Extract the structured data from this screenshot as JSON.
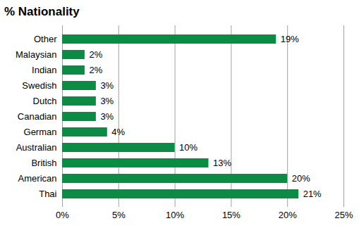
{
  "chart_data": {
    "type": "bar",
    "title": "% Nationality",
    "orientation": "horizontal",
    "categories": [
      "Other",
      "Malaysian",
      "Indian",
      "Swedish",
      "Dutch",
      "Canadian",
      "German",
      "Australian",
      "British",
      "American",
      "Thai"
    ],
    "values": [
      19,
      2,
      2,
      3,
      3,
      3,
      4,
      10,
      13,
      20,
      21
    ],
    "value_labels": [
      "19%",
      "2%",
      "2%",
      "3%",
      "3%",
      "3%",
      "4%",
      "10%",
      "13%",
      "20%",
      "21%"
    ],
    "color": "#0c8b45",
    "xlim": [
      0,
      25
    ],
    "xticks": [
      {
        "value": 0,
        "label": "0%"
      },
      {
        "value": 5,
        "label": "5%"
      },
      {
        "value": 10,
        "label": "10%"
      },
      {
        "value": 15,
        "label": "15%"
      },
      {
        "value": 20,
        "label": "20%"
      },
      {
        "value": 25,
        "label": "25%"
      }
    ],
    "grid": true,
    "data_labels": true
  }
}
